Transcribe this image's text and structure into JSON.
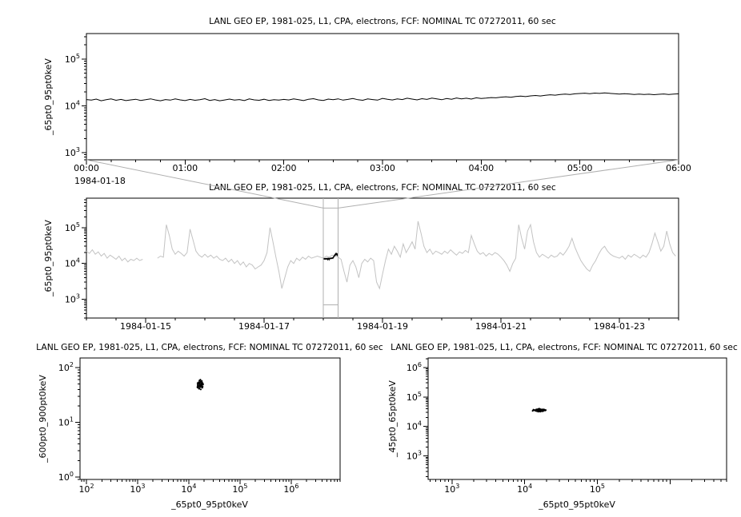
{
  "colors": {
    "series_black": "#000000",
    "series_gray": "#c3c3c3",
    "selection_gray": "#b0b0b0",
    "axis": "#000000",
    "background": "#ffffff"
  },
  "chart_data": [
    {
      "id": "top-zoom-timeseries",
      "type": "line",
      "title": "LANL GEO EP, 1981-025, L1, CPA, electrons, FCF: NOMINAL TC 07272011, 60 sec",
      "ylabel": "_65pt0_95pt0keV",
      "x_context_label": "1984-01-18",
      "x_axis": {
        "scale": "linear",
        "unit": "minutes",
        "min": 0,
        "max": 360,
        "major": [
          0,
          60,
          120,
          180,
          240,
          300,
          360
        ],
        "labels": [
          "00:00",
          "01:00",
          "02:00",
          "03:00",
          "04:00",
          "05:00",
          "06:00"
        ],
        "minor_step": 15
      },
      "y_axis": {
        "scale": "log",
        "min": 700,
        "max": 350000,
        "labeled_decades": [
          3,
          4,
          5
        ]
      },
      "series": {
        "name": "_65pt0_95pt0keV",
        "color": "#000000",
        "x_start": 0,
        "x_step": 3,
        "y_scale": 1000,
        "y": [
          13.6,
          13.2,
          13.9,
          12.8,
          13.5,
          14.0,
          13.1,
          13.7,
          12.9,
          13.4,
          13.8,
          13.0,
          13.5,
          14.1,
          13.3,
          12.8,
          13.6,
          13.2,
          14.0,
          13.4,
          12.9,
          13.7,
          13.1,
          13.5,
          14.2,
          13.0,
          13.6,
          12.8,
          13.3,
          13.9,
          13.2,
          13.6,
          12.9,
          14.0,
          13.4,
          13.1,
          13.8,
          13.0,
          13.5,
          13.2,
          13.7,
          13.3,
          14.0,
          13.5,
          12.9,
          13.8,
          14.2,
          13.4,
          13.0,
          13.9,
          13.5,
          14.1,
          13.2,
          13.7,
          14.3,
          13.5,
          13.1,
          14.0,
          13.6,
          13.2,
          14.4,
          13.8,
          13.3,
          14.1,
          13.6,
          14.5,
          13.9,
          13.4,
          14.2,
          13.7,
          14.6,
          14.0,
          13.5,
          14.3,
          13.8,
          14.7,
          14.1,
          14.5,
          13.9,
          14.8,
          14.3,
          14.6,
          15.0,
          14.8,
          15.3,
          15.6,
          15.2,
          15.8,
          16.1,
          15.7,
          16.3,
          16.6,
          16.2,
          16.8,
          17.2,
          16.9,
          17.4,
          17.8,
          17.5,
          18.0,
          18.3,
          18.6,
          18.2,
          18.7,
          18.4,
          18.8,
          18.5,
          18.1,
          17.8,
          18.2,
          17.9,
          17.5,
          17.8,
          17.4,
          17.7,
          17.3,
          17.6,
          17.9,
          17.5,
          17.8,
          18.0
        ]
      }
    },
    {
      "id": "context-timeseries",
      "type": "line",
      "title": "LANL GEO EP, 1981-025, L1, CPA, electrons, FCF: NOMINAL TC 07272011, 60 sec",
      "ylabel": "_65pt0_95pt0keV",
      "x_axis": {
        "scale": "linear",
        "unit": "days-from-1984-01-14",
        "min": 0,
        "max": 10,
        "major": [
          1,
          3,
          5,
          7,
          9
        ],
        "labels": [
          "1984-01-15",
          "1984-01-17",
          "1984-01-19",
          "1984-01-21",
          "1984-01-23"
        ],
        "minor_step": 0.5
      },
      "y_axis": {
        "scale": "log",
        "min": 300,
        "max": 660000,
        "labeled_decades": [
          3,
          4,
          5
        ]
      },
      "series": {
        "name": "_65pt0_95pt0keV",
        "color": "#c3c3c3",
        "x_start": 0,
        "x_step": 0.05,
        "y_scale": 1000,
        "y": [
          22,
          19,
          24,
          18,
          21,
          16,
          19,
          14,
          17,
          15,
          13,
          16,
          12,
          14,
          11,
          13,
          12,
          14,
          12,
          13,
          null,
          null,
          null,
          null,
          14,
          16,
          15,
          120,
          60,
          25,
          18,
          22,
          19,
          16,
          20,
          90,
          45,
          22,
          17,
          15,
          18,
          15,
          17,
          14,
          16,
          13,
          12,
          14,
          11,
          13,
          10,
          12,
          9,
          11,
          8,
          10,
          9,
          7,
          8,
          9,
          12,
          20,
          100,
          40,
          15,
          6,
          2,
          4,
          8,
          12,
          10,
          14,
          12,
          15,
          13,
          16,
          14,
          15,
          16,
          15,
          14,
          16,
          15,
          17,
          16,
          15,
          13,
          6,
          3,
          9,
          12,
          8,
          4,
          10,
          13,
          11,
          14,
          12,
          3,
          2,
          5,
          12,
          25,
          18,
          30,
          22,
          15,
          35,
          20,
          28,
          40,
          25,
          150,
          70,
          30,
          20,
          25,
          18,
          22,
          20,
          18,
          22,
          19,
          24,
          20,
          17,
          21,
          19,
          23,
          20,
          60,
          35,
          22,
          18,
          20,
          16,
          19,
          17,
          20,
          18,
          15,
          12,
          9,
          6,
          10,
          14,
          120,
          50,
          25,
          80,
          120,
          40,
          20,
          15,
          18,
          16,
          14,
          17,
          15,
          16,
          20,
          17,
          22,
          30,
          50,
          28,
          18,
          12,
          9,
          7,
          6,
          9,
          12,
          18,
          25,
          30,
          22,
          18,
          16,
          15,
          14,
          16,
          13,
          17,
          15,
          18,
          16,
          14,
          17,
          15,
          20,
          35,
          70,
          40,
          22,
          30,
          80,
          35,
          20,
          16
        ]
      },
      "zoom_overlay": {
        "source_chart": 0,
        "day_origin": 4.0,
        "minutes_per_day": 1440,
        "color": "#000000"
      },
      "selection": {
        "x0": 4.0,
        "x1": 4.25,
        "y_low": 700,
        "y_high": 350000
      }
    },
    {
      "id": "scatter-600-900",
      "type": "scatter",
      "title": "LANL GEO EP, 1981-025, L1, CPA, electrons, FCF: NOMINAL TC 07272011, 60 sec",
      "ylabel": "_600pt0_900pt0keV",
      "xlabel": "_65pt0_95pt0keV",
      "x_axis": {
        "scale": "log",
        "min": 75,
        "max": 9000000,
        "labeled_decades": [
          2,
          3,
          4,
          5,
          6
        ]
      },
      "y_axis": {
        "scale": "log",
        "min": 0.9,
        "max": 150,
        "labeled_decades": [
          0,
          1,
          2
        ]
      },
      "x_scale": 1000,
      "y_scale": 1,
      "points": [
        [
          15.1,
          46
        ],
        [
          16.3,
          50
        ],
        [
          17.2,
          44
        ],
        [
          14.8,
          52
        ],
        [
          18.0,
          47
        ],
        [
          16.7,
          55
        ],
        [
          15.9,
          41
        ],
        [
          17.8,
          49
        ],
        [
          16.1,
          58
        ],
        [
          15.4,
          45
        ],
        [
          17.5,
          52
        ],
        [
          18.4,
          43
        ],
        [
          16.9,
          48
        ],
        [
          15.6,
          54
        ],
        [
          17.1,
          40
        ],
        [
          18.8,
          51
        ],
        [
          16.4,
          46
        ],
        [
          15.2,
          50
        ],
        [
          17.9,
          57
        ],
        [
          16.6,
          44
        ],
        [
          14.9,
          48
        ],
        [
          18.2,
          53
        ],
        [
          17.3,
          46
        ],
        [
          15.8,
          42
        ],
        [
          16.8,
          60
        ],
        [
          17.6,
          47
        ],
        [
          15.5,
          51
        ],
        [
          18.6,
          45
        ],
        [
          16.2,
          49
        ],
        [
          17.0,
          56
        ],
        [
          15.0,
          43
        ],
        [
          17.7,
          50
        ],
        [
          16.5,
          47
        ],
        [
          18.1,
          54
        ],
        [
          15.7,
          46
        ],
        [
          16.0,
          52
        ],
        [
          17.4,
          48
        ],
        [
          14.7,
          44
        ],
        [
          18.9,
          49
        ],
        [
          16.35,
          53
        ]
      ]
    },
    {
      "id": "scatter-45-65",
      "type": "scatter",
      "title": "LANL GEO EP, 1981-025, L1, CPA, electrons, FCF: NOMINAL TC 07272011, 60 sec",
      "ylabel": "_45pt0_65pt0keV",
      "xlabel": "_65pt0_95pt0keV",
      "x_axis": {
        "scale": "log",
        "min": 470,
        "max": 6000000,
        "labeled_decades": [
          3,
          4,
          5
        ]
      },
      "y_axis": {
        "scale": "log",
        "min": 160,
        "max": 2100000,
        "labeled_decades": [
          3,
          4,
          5,
          6
        ]
      },
      "x_scale": 1000,
      "y_scale": 1000,
      "points": [
        [
          13.5,
          36
        ],
        [
          14.2,
          34
        ],
        [
          15.0,
          37
        ],
        [
          15.8,
          35
        ],
        [
          16.5,
          38
        ],
        [
          17.2,
          36
        ],
        [
          18.0,
          34
        ],
        [
          18.8,
          37
        ],
        [
          14.8,
          33
        ],
        [
          15.5,
          36
        ],
        [
          16.2,
          39
        ],
        [
          17.0,
          35
        ],
        [
          17.8,
          33
        ],
        [
          13.9,
          35
        ],
        [
          16.8,
          37
        ],
        [
          15.2,
          34
        ],
        [
          18.4,
          36
        ],
        [
          14.5,
          38
        ],
        [
          17.5,
          37
        ],
        [
          16.0,
          33
        ],
        [
          19.2,
          35
        ],
        [
          13.2,
          37
        ],
        [
          15.9,
          40
        ],
        [
          17.3,
          38
        ],
        [
          16.4,
          32
        ],
        [
          14.0,
          36
        ],
        [
          18.6,
          35
        ],
        [
          15.3,
          39
        ],
        [
          16.9,
          34
        ],
        [
          17.7,
          36
        ],
        [
          12.9,
          34
        ],
        [
          19.5,
          36
        ],
        [
          15.6,
          35
        ],
        [
          16.1,
          37
        ],
        [
          17.1,
          33
        ],
        [
          14.4,
          35
        ],
        [
          18.2,
          38
        ],
        [
          15.4,
          32
        ],
        [
          16.6,
          36
        ],
        [
          17.9,
          35
        ]
      ]
    }
  ]
}
